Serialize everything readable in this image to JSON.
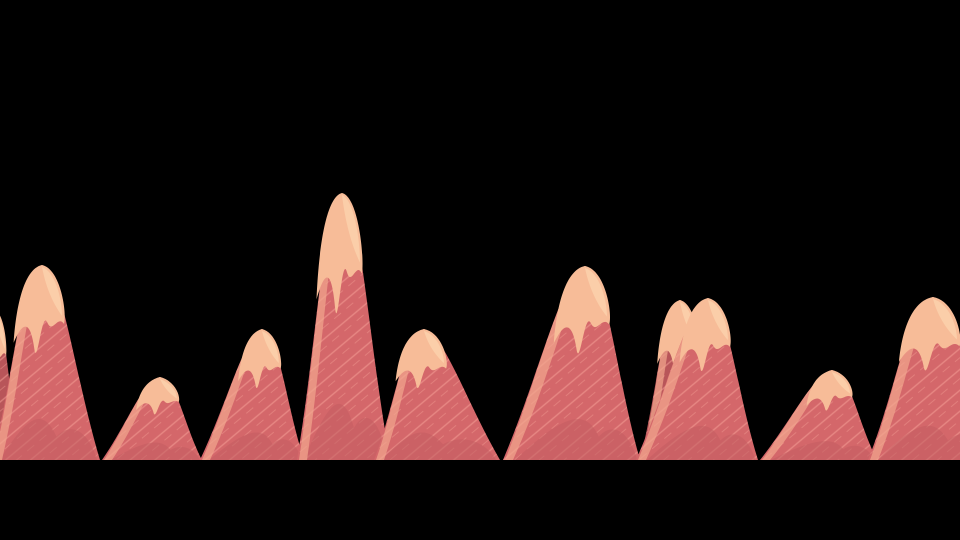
{
  "scene": {
    "background": "#000000",
    "element": "mountain-range",
    "mountain_count": 11
  },
  "palette": {
    "body": "#d4676a",
    "body_dark": "#b85559",
    "shade": "#c25c60",
    "snow": "#f7bc98",
    "snow_light": "#fcd1ac",
    "rim": "#f2a88e",
    "hatch": "#f5a296"
  }
}
